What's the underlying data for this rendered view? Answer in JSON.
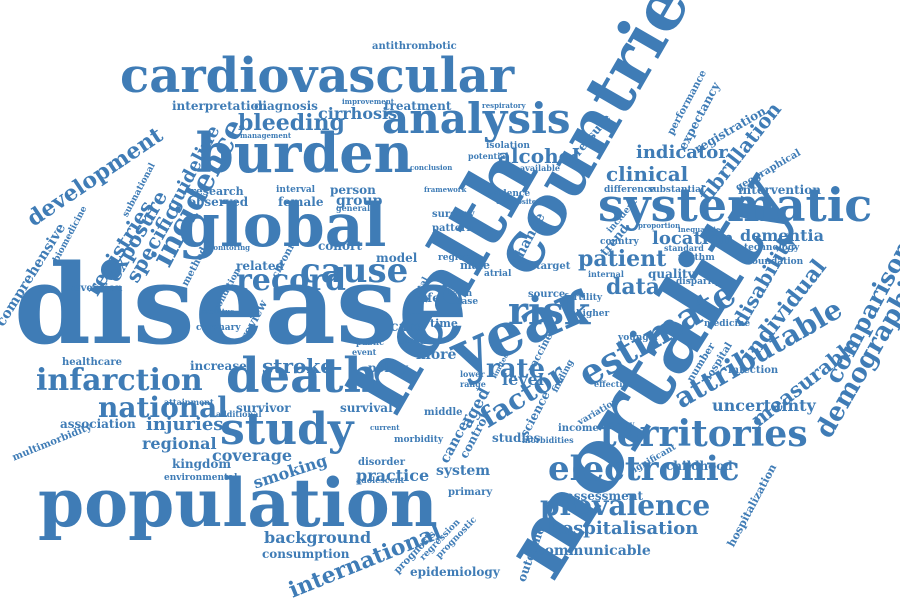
{
  "colors": {
    "word": "#3f7cb6",
    "background": "#ffffff"
  },
  "words": [
    {
      "text": "disease"
    },
    {
      "text": "mortality"
    },
    {
      "text": "health"
    },
    {
      "text": "countrie"
    },
    {
      "text": "population"
    },
    {
      "text": "cardiovascular"
    },
    {
      "text": "burden"
    },
    {
      "text": "global"
    },
    {
      "text": "systematic"
    },
    {
      "text": "year"
    },
    {
      "text": "death"
    },
    {
      "text": "study"
    },
    {
      "text": "analysis"
    },
    {
      "text": "territories"
    },
    {
      "text": "risk"
    },
    {
      "text": "estimate"
    },
    {
      "text": "electronic"
    },
    {
      "text": "prevalence"
    },
    {
      "text": "attributable"
    },
    {
      "text": "demographic"
    },
    {
      "text": "incidence"
    },
    {
      "text": "infarction"
    },
    {
      "text": "national"
    },
    {
      "text": "cause"
    },
    {
      "text": "record"
    },
    {
      "text": "comparison"
    },
    {
      "text": "factor"
    },
    {
      "text": "rate"
    },
    {
      "text": "bleeding"
    },
    {
      "text": "development"
    },
    {
      "text": "patient"
    },
    {
      "text": "individual"
    },
    {
      "text": "fibrillation"
    },
    {
      "text": "disability"
    },
    {
      "text": "international"
    },
    {
      "text": "clinical"
    },
    {
      "text": "alcohol"
    },
    {
      "text": "data"
    },
    {
      "text": "stroke"
    },
    {
      "text": "measurable"
    },
    {
      "text": "uncertainty"
    },
    {
      "text": "indicator"
    },
    {
      "text": "location"
    },
    {
      "text": "dementia"
    },
    {
      "text": "registries"
    },
    {
      "text": "exposure"
    },
    {
      "text": "specific"
    },
    {
      "text": "guideline"
    },
    {
      "text": "comprehensive"
    },
    {
      "text": "regional"
    },
    {
      "text": "injuries"
    },
    {
      "text": "coverage"
    },
    {
      "text": "smoking"
    },
    {
      "text": "practice"
    },
    {
      "text": "system"
    },
    {
      "text": "hospitalisation"
    },
    {
      "text": "communicable"
    },
    {
      "text": "assessment"
    },
    {
      "text": "background"
    },
    {
      "text": "consumption"
    },
    {
      "text": "epidemiology"
    },
    {
      "text": "outcome"
    },
    {
      "text": "prognosis"
    },
    {
      "text": "cirrhosis"
    },
    {
      "text": "treatment"
    },
    {
      "text": "diagnosis"
    },
    {
      "text": "interpretation"
    },
    {
      "text": "antithrombotic"
    },
    {
      "text": "intervention"
    },
    {
      "text": "registration"
    },
    {
      "text": "expectancy"
    },
    {
      "text": "performance"
    },
    {
      "text": "pressure"
    },
    {
      "text": "geographical"
    },
    {
      "text": "childhood"
    },
    {
      "text": "hospitalization"
    },
    {
      "text": "kingdom"
    },
    {
      "text": "environmental"
    },
    {
      "text": "multimorbidity"
    },
    {
      "text": "association"
    },
    {
      "text": "healthcare"
    },
    {
      "text": "prevention"
    },
    {
      "text": "biomedicine"
    },
    {
      "text": "research"
    },
    {
      "text": "observed"
    },
    {
      "text": "female"
    },
    {
      "text": "group"
    },
    {
      "text": "person"
    },
    {
      "text": "cohort"
    },
    {
      "text": "model"
    },
    {
      "text": "related"
    },
    {
      "text": "method"
    },
    {
      "text": "survival"
    },
    {
      "text": "survivor"
    },
    {
      "text": "attainment"
    },
    {
      "text": "increase"
    },
    {
      "text": "policy"
    },
    {
      "text": "more"
    },
    {
      "text": "care"
    },
    {
      "text": "level"
    },
    {
      "text": "aged"
    },
    {
      "text": "cancer"
    },
    {
      "text": "control"
    },
    {
      "text": "studies"
    },
    {
      "text": "science"
    },
    {
      "text": "vaccine"
    },
    {
      "text": "change"
    },
    {
      "text": "trend"
    },
    {
      "text": "quality"
    },
    {
      "text": "rhythm"
    },
    {
      "text": "income"
    },
    {
      "text": "number"
    },
    {
      "text": "hospital"
    },
    {
      "text": "infection"
    },
    {
      "text": "foundation"
    },
    {
      "text": "technology"
    },
    {
      "text": "medicine"
    },
    {
      "text": "difference"
    },
    {
      "text": "substantial"
    },
    {
      "text": "country"
    },
    {
      "text": "pattern"
    },
    {
      "text": "surgery"
    },
    {
      "text": "male"
    },
    {
      "text": "target"
    },
    {
      "text": "source"
    },
    {
      "text": "fertility"
    },
    {
      "text": "atrial"
    },
    {
      "text": "term"
    },
    {
      "text": "life"
    },
    {
      "text": "total"
    },
    {
      "text": "region"
    },
    {
      "text": "variation"
    },
    {
      "text": "finding"
    },
    {
      "text": "primary"
    },
    {
      "text": "significant"
    },
    {
      "text": "regression"
    },
    {
      "text": "prognostic"
    },
    {
      "text": "disorder"
    },
    {
      "text": "middle"
    },
    {
      "text": "morbidity"
    },
    {
      "text": "adolescent"
    },
    {
      "text": "event"
    },
    {
      "text": "public"
    },
    {
      "text": "blood"
    },
    {
      "text": "time"
    },
    {
      "text": "review"
    },
    {
      "text": "chronic"
    },
    {
      "text": "condition"
    },
    {
      "text": "coronary"
    },
    {
      "text": "additional"
    },
    {
      "text": "morbidities"
    },
    {
      "text": "younger"
    },
    {
      "text": "effective"
    },
    {
      "text": "standard"
    },
    {
      "text": "disparity"
    },
    {
      "text": "evidence"
    },
    {
      "text": "composite"
    },
    {
      "text": "potential"
    },
    {
      "text": "isolation"
    },
    {
      "text": "respiratory"
    },
    {
      "text": "improvement"
    },
    {
      "text": "management"
    },
    {
      "text": "conclusion"
    },
    {
      "text": "interval"
    },
    {
      "text": "general"
    },
    {
      "text": "monitoring"
    },
    {
      "text": "mellitus"
    },
    {
      "text": "current"
    },
    {
      "text": "higher"
    },
    {
      "text": "internal"
    },
    {
      "text": "inequalities"
    },
    {
      "text": "proportion"
    },
    {
      "text": "subnational"
    },
    {
      "text": "framework"
    },
    {
      "text": "available"
    },
    {
      "text": "case"
    },
    {
      "text": "incident"
    },
    {
      "text": "therapy"
    },
    {
      "text": "limited"
    },
    {
      "text": "lower"
    },
    {
      "text": "range"
    }
  ]
}
